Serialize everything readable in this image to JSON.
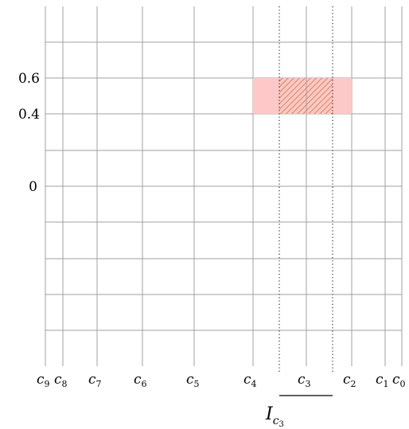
{
  "y_ticks": [
    {
      "label": "0.6",
      "value": 0.6
    },
    {
      "label": "0.4",
      "value": 0.4
    },
    {
      "label": "0",
      "value": 0
    }
  ],
  "columns": [
    {
      "name": "c",
      "sub": "9"
    },
    {
      "name": "c",
      "sub": "8"
    },
    {
      "name": "c",
      "sub": "7"
    },
    {
      "name": "c",
      "sub": "6"
    },
    {
      "name": "c",
      "sub": "5"
    },
    {
      "name": "c",
      "sub": "4"
    },
    {
      "name": "c",
      "sub": "3"
    },
    {
      "name": "c",
      "sub": "2"
    },
    {
      "name": "c",
      "sub": "1"
    },
    {
      "name": "c",
      "sub": "0"
    }
  ],
  "interval": {
    "name": "I",
    "sub": "c",
    "subsub": "3"
  },
  "colors": {
    "grid": "#a0a0a0",
    "cell_fill": "#ffc8c8",
    "hatch": "#c87830",
    "axis": "#000000"
  }
}
